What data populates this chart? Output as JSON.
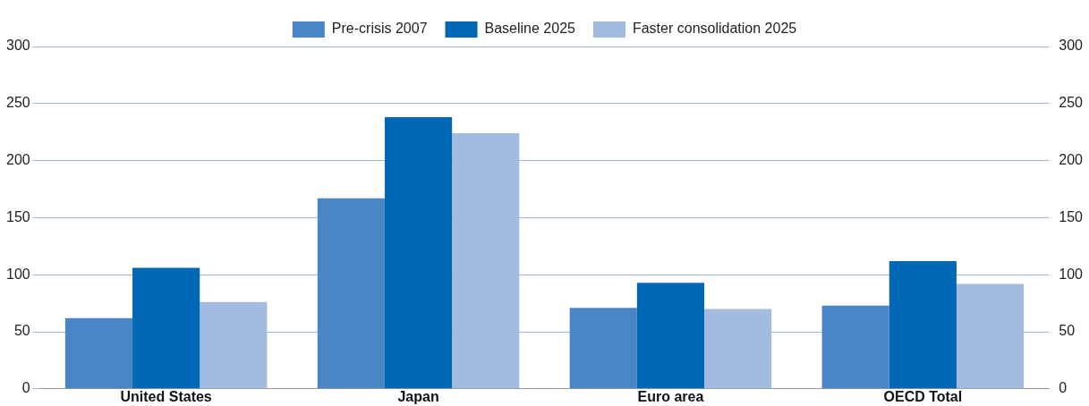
{
  "chart_data": {
    "type": "bar",
    "categories": [
      "United States",
      "Japan",
      "Euro area",
      "OECD Total"
    ],
    "series": [
      {
        "name": "Pre-crisis 2007",
        "color": "#4a86c5",
        "values": [
          62,
          167,
          71,
          73
        ]
      },
      {
        "name": "Baseline 2025",
        "color": "#0068b4",
        "values": [
          106,
          238,
          93,
          112
        ]
      },
      {
        "name": "Faster consolidation 2025",
        "color": "#a4bbe0",
        "values": [
          76,
          224,
          70,
          92
        ]
      }
    ],
    "ylim": [
      0,
      300
    ],
    "yticks": [
      0,
      50,
      100,
      150,
      200,
      250,
      300
    ],
    "y2lim": [
      0,
      300
    ],
    "y2ticks": [
      0,
      50,
      100,
      150,
      200,
      250,
      300
    ],
    "grid": "y",
    "legend": "top"
  }
}
